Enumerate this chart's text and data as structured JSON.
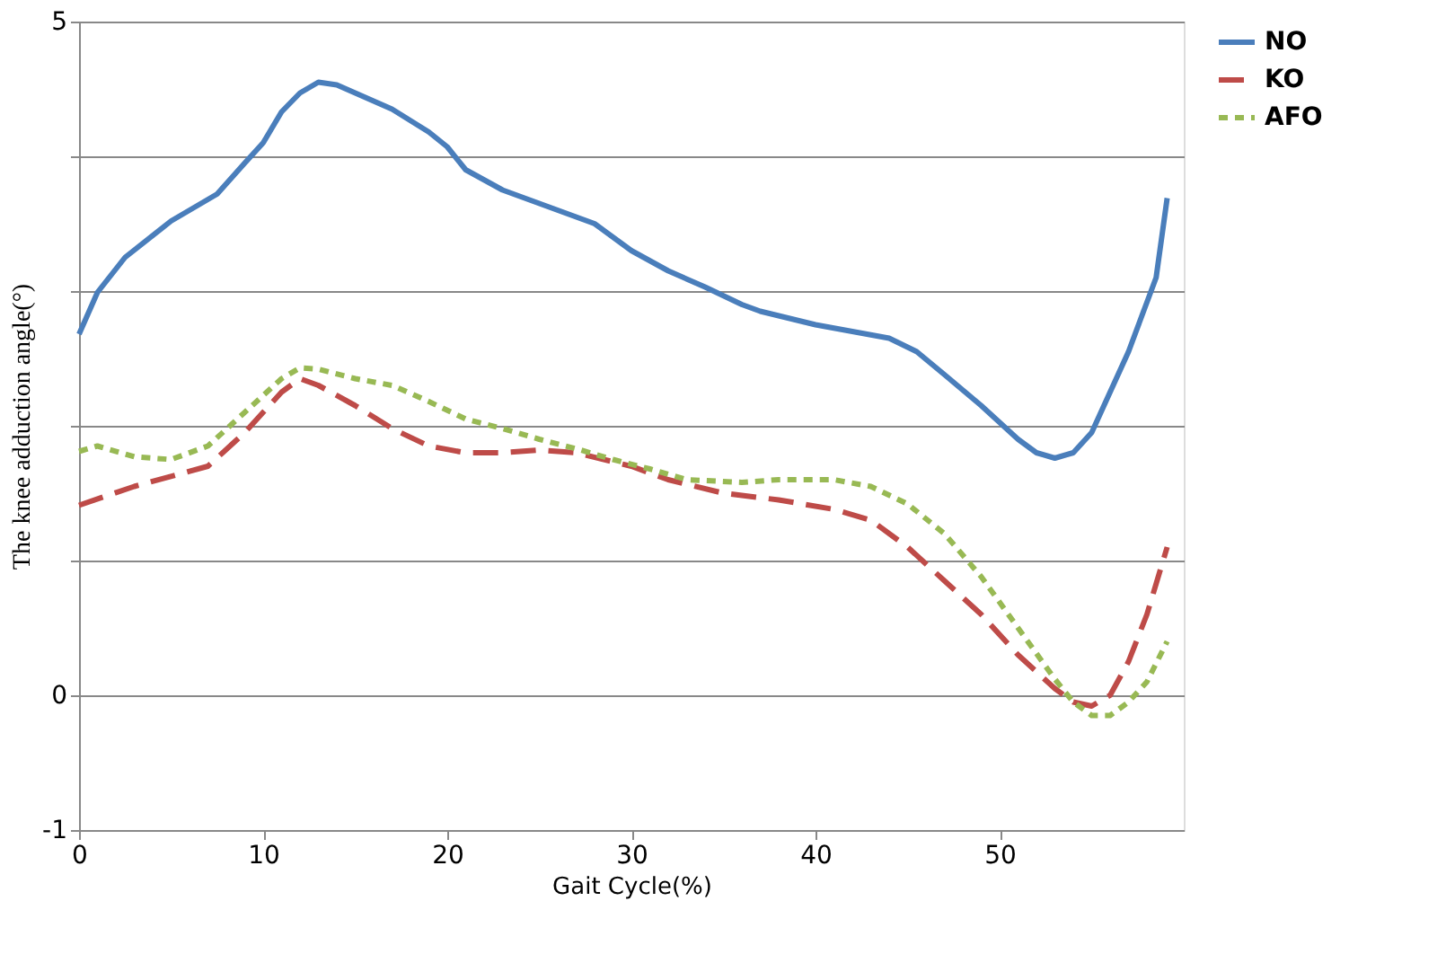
{
  "chart_data": {
    "type": "line",
    "xlabel": "Gait Cycle(%)",
    "ylabel": "The knee adduction angle(°)",
    "xlim": [
      0,
      60
    ],
    "xticks": [
      0,
      10,
      20,
      30,
      40,
      50
    ],
    "ylim": [
      -1,
      5
    ],
    "yticks": [
      -1,
      0,
      {
        "value": 1,
        "label": null
      },
      {
        "value": 2,
        "label": null
      },
      {
        "value": 3,
        "label": null
      },
      {
        "value": 4,
        "label": null
      },
      5
    ],
    "grid": "y",
    "legend": "right",
    "marker": "none",
    "series": [
      {
        "name": "NO",
        "color": "#4a7ebb",
        "line_style": "solid",
        "x": [
          0,
          1,
          2.5,
          5,
          7.5,
          9,
          10,
          11,
          12,
          13,
          14,
          15,
          17,
          19,
          20,
          21,
          23,
          25,
          27,
          28,
          30,
          32,
          34,
          36,
          37,
          40,
          42,
          44,
          45.5,
          47,
          49,
          51,
          52,
          53,
          54,
          55,
          56,
          57,
          58.5,
          59.1
        ],
        "values": [
          2.68,
          2.99,
          3.25,
          3.52,
          3.72,
          3.95,
          4.1,
          4.33,
          4.47,
          4.55,
          4.53,
          4.47,
          4.35,
          4.18,
          4.07,
          3.9,
          3.75,
          3.65,
          3.55,
          3.5,
          3.3,
          3.15,
          3.03,
          2.9,
          2.85,
          2.75,
          2.7,
          2.65,
          2.55,
          2.38,
          2.15,
          1.9,
          1.8,
          1.76,
          1.8,
          1.95,
          2.25,
          2.55,
          3.1,
          3.69
        ]
      },
      {
        "name": "KO",
        "color": "#be4b48",
        "line_style": "dashed",
        "x": [
          0,
          3,
          7,
          9,
          11,
          12,
          13,
          15,
          17,
          19,
          21,
          23,
          25,
          27,
          30,
          32,
          35,
          38,
          41,
          43,
          45,
          47,
          49,
          51,
          53,
          54,
          55,
          56,
          57,
          58,
          59.1
        ],
        "values": [
          1.41,
          1.55,
          1.7,
          1.95,
          2.25,
          2.35,
          2.3,
          2.15,
          1.98,
          1.85,
          1.8,
          1.8,
          1.82,
          1.8,
          1.7,
          1.6,
          1.5,
          1.45,
          1.38,
          1.3,
          1.1,
          0.85,
          0.6,
          0.3,
          0.05,
          -0.05,
          -0.08,
          0.0,
          0.25,
          0.6,
          1.1
        ]
      },
      {
        "name": "AFO",
        "color": "#98b954",
        "line_style": "dotted",
        "x": [
          0,
          1,
          3,
          5,
          7,
          9,
          11,
          12,
          13,
          15,
          17,
          19,
          21,
          23,
          25,
          27,
          29,
          31,
          33,
          36,
          38,
          41,
          43,
          45,
          47,
          49,
          51,
          53,
          54,
          55,
          56,
          57,
          58,
          59.1
        ],
        "values": [
          1.81,
          1.85,
          1.77,
          1.75,
          1.85,
          2.1,
          2.35,
          2.43,
          2.42,
          2.35,
          2.3,
          2.18,
          2.05,
          1.98,
          1.9,
          1.83,
          1.75,
          1.68,
          1.6,
          1.58,
          1.6,
          1.6,
          1.55,
          1.42,
          1.2,
          0.88,
          0.5,
          0.12,
          -0.05,
          -0.15,
          -0.15,
          -0.05,
          0.1,
          0.4
        ]
      }
    ]
  }
}
